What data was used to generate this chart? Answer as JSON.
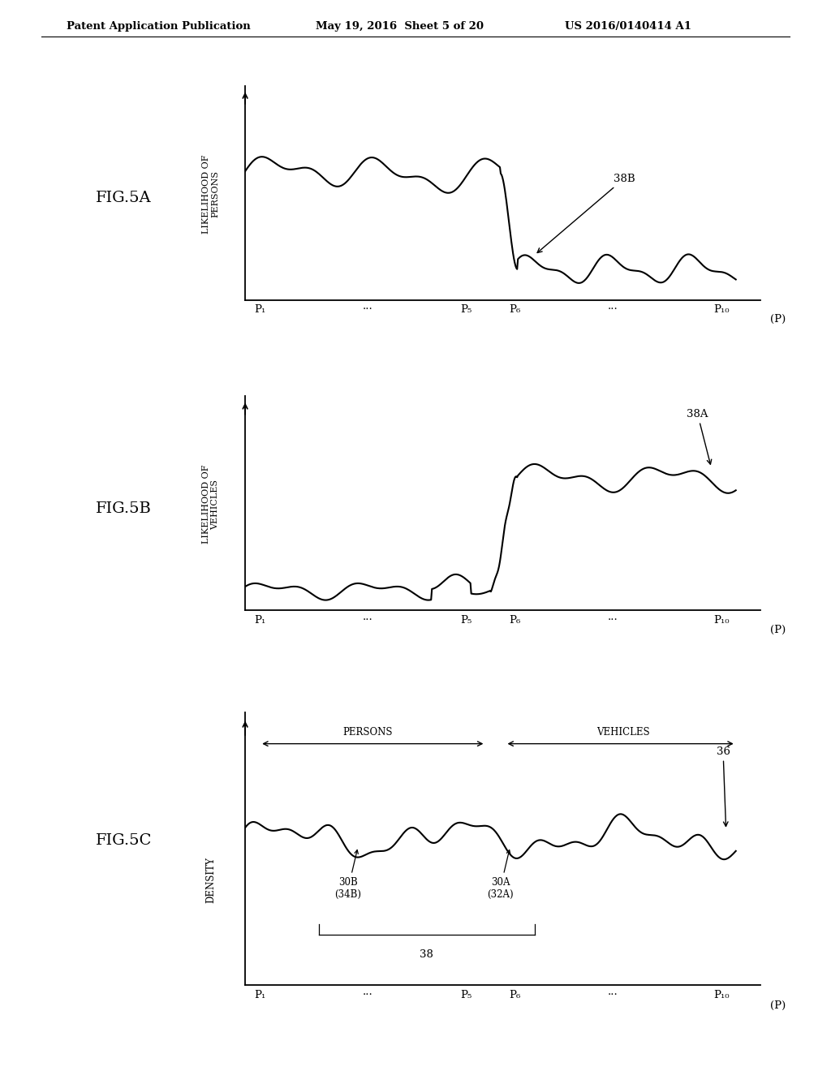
{
  "header_left": "Patent Application Publication",
  "header_mid": "May 19, 2016  Sheet 5 of 20",
  "header_right": "US 2016/0140414 A1",
  "bg_color": "#ffffff",
  "line_color": "#000000",
  "fig5a_label": "FIG.5A",
  "fig5b_label": "FIG.5B",
  "fig5c_label": "FIG.5C",
  "ylabel_5a": "LIKELIHOOD OF\nPERSONS",
  "ylabel_5b": "LIKELIHOOD OF\nVEHICLES",
  "ylabel_5c": "DENSITY",
  "xlabel_label": "(P)",
  "xticks": [
    "P₁",
    "···",
    "P₅",
    "P₆",
    "···",
    "P₁₀"
  ],
  "annotation_5a": "38B",
  "annotation_5b": "38A",
  "annotation_5c_curve": "36",
  "annotation_5c_left": "30B\n(34B)",
  "annotation_5c_right": "30A\n(32A)",
  "annotation_5c_brace": "38",
  "label_persons": "PERSONS",
  "label_vehicles": "VEHICLES"
}
